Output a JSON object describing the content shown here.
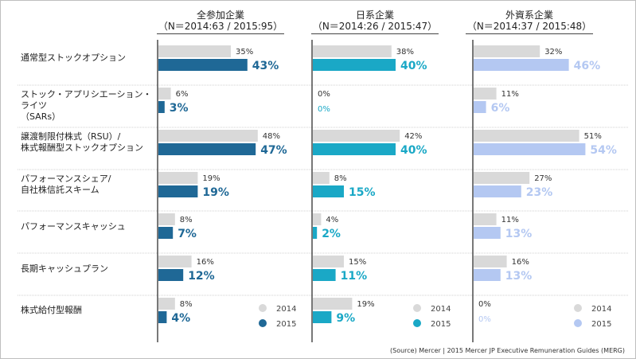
{
  "colors": {
    "gray_2014": "#d9d9d9",
    "all_2015": "#1f6896",
    "jp_2015": "#1aa8c6",
    "foreign_2015": "#b4c8f2",
    "divider": "#1f1f1f",
    "row_sep": "#d0d0d0"
  },
  "chart_data": {
    "type": "bar",
    "orientation": "horizontal",
    "panels": [
      {
        "title": "全参加企業",
        "subtitle": "（N＝2014:63 / 2015:95）"
      },
      {
        "title": "日系企業",
        "subtitle": "（N＝2014:26 / 2015:47）"
      },
      {
        "title": "外資系企業",
        "subtitle": "（N＝2014:37 / 2015:48）"
      }
    ],
    "categories": [
      [
        "通常型ストックオプション"
      ],
      [
        "ストック・アプリシエーション・ライツ",
        "（SARs）"
      ],
      [
        "譲渡制限付株式（RSU）/",
        "株式報酬型ストックオプション"
      ],
      [
        "パフォーマンスシェア/",
        "自社株信託スキーム"
      ],
      [
        "パフォーマンスキャッシュ"
      ],
      [
        "長期キャッシュプラン"
      ],
      [
        "株式給付型報酬"
      ]
    ],
    "series": [
      {
        "name": "2014",
        "values": [
          [
            35,
            6,
            48,
            19,
            8,
            16,
            8
          ],
          [
            38,
            0,
            42,
            8,
            4,
            15,
            19
          ],
          [
            32,
            11,
            51,
            27,
            11,
            16,
            0
          ]
        ]
      },
      {
        "name": "2015",
        "values": [
          [
            43,
            3,
            47,
            19,
            7,
            12,
            4
          ],
          [
            40,
            0,
            40,
            15,
            2,
            11,
            9
          ],
          [
            46,
            6,
            54,
            23,
            13,
            13,
            0
          ]
        ]
      }
    ],
    "value_format": "{v}%",
    "legend": {
      "labels": [
        "2014",
        "2015"
      ],
      "position": "bottom-right of each panel"
    }
  },
  "source": "(Source) Mercer | 2015 Mercer JP Executive Remuneration Guides (MERG)"
}
